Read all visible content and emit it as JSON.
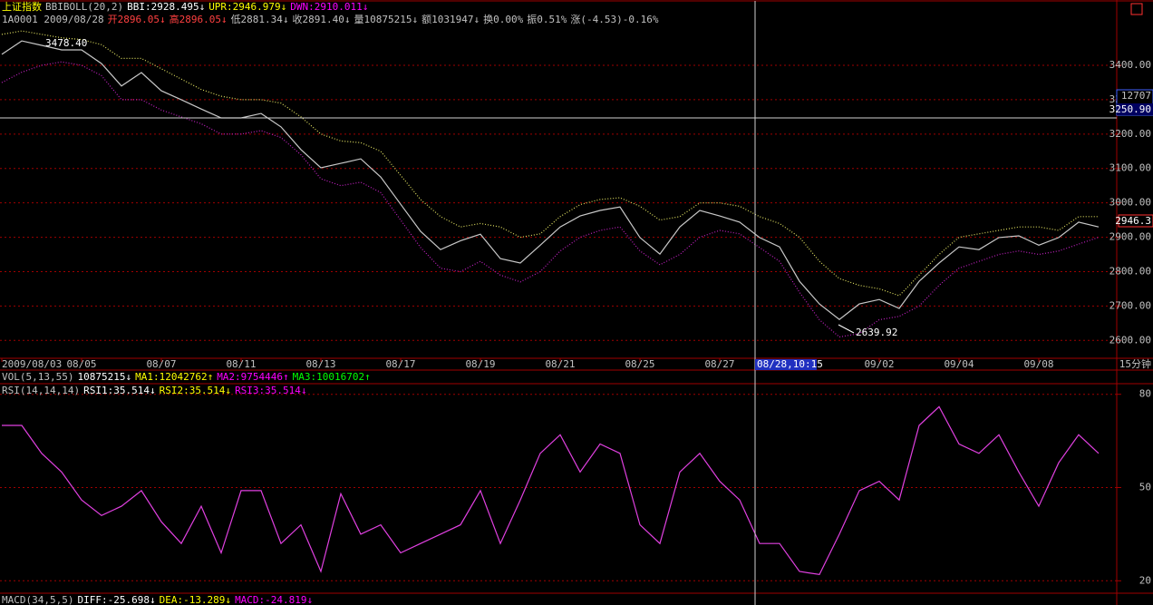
{
  "header": {
    "symbol": "上证指数",
    "indicator": "BBIBOLL(20,2)",
    "bbi": "BBI:2928.495↓",
    "upr": "UPR:2946.979↓",
    "dwn": "DWN:2910.011↓"
  },
  "quote": [
    "1A0001 2009/08/28",
    "开2896.05↓",
    "高2896.05↓",
    "低2881.34↓",
    "收2891.40↓",
    "量10875215↓",
    "额1031947↓",
    "换0.00%",
    "振0.51%",
    "涨(-4.53)-0.16%"
  ],
  "vol_header": [
    "VOL(5,13,55)",
    "10875215↓",
    "MA1:12042762↑",
    "MA2:9754446↑",
    "MA3:10016702↑"
  ],
  "rsi_header": [
    "RSI(14,14,14)",
    "RSI1:35.514↓",
    "RSI2:35.514↓",
    "RSI3:35.514↓"
  ],
  "macd_header": [
    "MACD(34,5,5)",
    "DIFF:-25.698↓",
    "DEA:-13.289↓",
    "MACD:-24.819↓"
  ],
  "crosshair": {
    "volume": "12707",
    "price": "3250.90",
    "time": "08/28,10:15"
  },
  "last_price": "2946.3",
  "period": "15分钟",
  "chart_data": [
    {
      "type": "line",
      "annotations": [
        "3478.40",
        "2639.92"
      ],
      "x": [
        0,
        0.5,
        1,
        1.5,
        2,
        2.5,
        3,
        3.5,
        4,
        4.5,
        5,
        5.5,
        6,
        6.5,
        7,
        7.5,
        8,
        8.5,
        9,
        9.5,
        10,
        10.5,
        11,
        11.5,
        12,
        12.5,
        13,
        13.5,
        14,
        14.5,
        15,
        15.5,
        16,
        16.5,
        17,
        17.5,
        18,
        18.5,
        19,
        19.5,
        20,
        20.5,
        21,
        21.5,
        22,
        22.5,
        23,
        23.5,
        24,
        24.5,
        25,
        25.5,
        26,
        26.5,
        27,
        27.5
      ],
      "series": [
        {
          "color": "#c8c8c8",
          "values": [
            3432,
            3471,
            3458,
            3445,
            3445,
            3405,
            3340,
            3379,
            3326,
            3300,
            3273,
            3247,
            3247,
            3260,
            3221,
            3155,
            3102,
            3115,
            3128,
            3075,
            2996,
            2917,
            2864,
            2890,
            2909,
            2838,
            2825,
            2877,
            2930,
            2962,
            2978,
            2988,
            2899,
            2851,
            2930,
            2978,
            2962,
            2944,
            2899,
            2872,
            2772,
            2706,
            2661,
            2706,
            2719,
            2693,
            2772,
            2825,
            2872,
            2864,
            2899,
            2904,
            2877,
            2899,
            2944,
            2930
          ]
        },
        {
          "color": "#e0e060",
          "values": [
            3490,
            3500,
            3490,
            3480,
            3475,
            3460,
            3420,
            3420,
            3390,
            3360,
            3330,
            3310,
            3300,
            3300,
            3290,
            3250,
            3200,
            3180,
            3175,
            3150,
            3080,
            3010,
            2960,
            2930,
            2940,
            2930,
            2900,
            2910,
            2960,
            2995,
            3010,
            3015,
            2990,
            2950,
            2960,
            3000,
            3000,
            2990,
            2960,
            2940,
            2900,
            2830,
            2780,
            2760,
            2750,
            2730,
            2790,
            2850,
            2900,
            2910,
            2920,
            2930,
            2930,
            2920,
            2960,
            2960
          ]
        },
        {
          "color": "#c020c0",
          "values": [
            3350,
            3380,
            3400,
            3410,
            3400,
            3370,
            3300,
            3300,
            3270,
            3250,
            3230,
            3200,
            3200,
            3210,
            3190,
            3140,
            3070,
            3050,
            3060,
            3030,
            2950,
            2870,
            2810,
            2800,
            2830,
            2790,
            2770,
            2800,
            2860,
            2900,
            2920,
            2930,
            2860,
            2820,
            2850,
            2900,
            2920,
            2910,
            2870,
            2830,
            2740,
            2660,
            2610,
            2620,
            2660,
            2670,
            2700,
            2760,
            2810,
            2830,
            2850,
            2860,
            2850,
            2860,
            2880,
            2900
          ]
        }
      ],
      "xlim": [
        0,
        28
      ],
      "xticks": [
        {
          "value": 0,
          "label": "2009/08/03"
        },
        {
          "value": 2,
          "label": "08/05"
        },
        {
          "value": 4,
          "label": "08/07"
        },
        {
          "value": 6,
          "label": "08/11"
        },
        {
          "value": 8,
          "label": "08/13"
        },
        {
          "value": 10,
          "label": "08/17"
        },
        {
          "value": 12,
          "label": "08/19"
        },
        {
          "value": 14,
          "label": "08/21"
        },
        {
          "value": 16,
          "label": "08/25"
        },
        {
          "value": 18,
          "label": "08/27"
        },
        {
          "value": 22,
          "label": "09/02"
        },
        {
          "value": 24,
          "label": "09/04"
        },
        {
          "value": 26,
          "label": "09/08"
        }
      ],
      "ylim": [
        2548,
        3590
      ],
      "yticks": [
        {
          "value": 2600,
          "label": "2600.00"
        },
        {
          "value": 2700,
          "label": "2700.00"
        },
        {
          "value": 2800,
          "label": "2800.00"
        },
        {
          "value": 2900,
          "label": "2900.00"
        },
        {
          "value": 3000,
          "label": "3000.00"
        },
        {
          "value": 3100,
          "label": "3100.00"
        },
        {
          "value": 3200,
          "label": "3200.00"
        },
        {
          "value": 3300,
          "label": "3300.00"
        },
        {
          "value": 3400,
          "label": "3400.00"
        }
      ],
      "grid": true
    },
    {
      "type": "line",
      "x": [
        0,
        0.5,
        1,
        1.5,
        2,
        2.5,
        3,
        3.5,
        4,
        4.5,
        5,
        5.5,
        6,
        6.5,
        7,
        7.5,
        8,
        8.5,
        9,
        9.5,
        10,
        10.5,
        11,
        11.5,
        12,
        12.5,
        13,
        13.5,
        14,
        14.5,
        15,
        15.5,
        16,
        16.5,
        17,
        17.5,
        18,
        18.5,
        19,
        19.5,
        20,
        20.5,
        21,
        21.5,
        22,
        22.5,
        23,
        23.5,
        24,
        24.5,
        25,
        25.5,
        26,
        26.5,
        27,
        27.5
      ],
      "series": [
        {
          "color": "#e040e0",
          "values": [
            70,
            70,
            61,
            55,
            46,
            41,
            44,
            49,
            39,
            32,
            44,
            29,
            49,
            49,
            32,
            38,
            23,
            48,
            35,
            38,
            29,
            32,
            35,
            38,
            49,
            32,
            46,
            61,
            67,
            55,
            64,
            61,
            38,
            32,
            55,
            61,
            52,
            46,
            32,
            32,
            23,
            22,
            35,
            49,
            52,
            46,
            70,
            76,
            64,
            61,
            67,
            55,
            44,
            58,
            67,
            61
          ]
        }
      ],
      "xlim": [
        0,
        28
      ],
      "ylim": [
        16,
        84
      ],
      "yticks": [
        20,
        50,
        80
      ],
      "grid": true
    }
  ]
}
